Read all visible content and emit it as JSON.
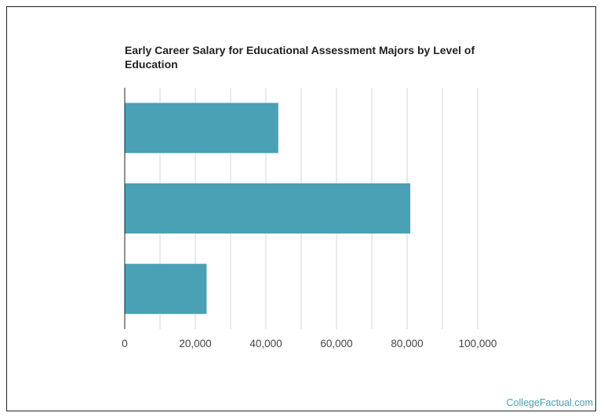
{
  "chart_data": {
    "type": "bar",
    "orientation": "horizontal",
    "title": "Early Career Salary for Educational Assessment Majors by Level of Education",
    "categories": [
      "",
      "",
      ""
    ],
    "values": [
      43500,
      80900,
      23200
    ],
    "xlim": [
      0,
      100000
    ],
    "xticks": [
      0,
      20000,
      40000,
      60000,
      80000,
      100000
    ],
    "xtick_labels": [
      "0",
      "20,000",
      "40,000",
      "60,000",
      "80,000",
      "100,000"
    ],
    "grid": true,
    "bar_color": "#4aa0b4"
  },
  "credit": "CollegeFactual.com",
  "colors": {
    "bar": "#4aa0b4",
    "grid": "#d6d6d6",
    "axis": "#222222",
    "tick_text": "#444444",
    "credit": "#4a9fb5"
  }
}
